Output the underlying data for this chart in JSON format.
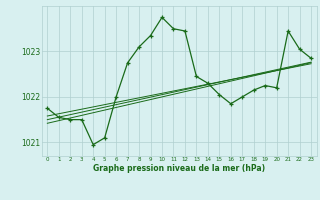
{
  "x": [
    0,
    1,
    2,
    3,
    4,
    5,
    6,
    7,
    8,
    9,
    10,
    11,
    12,
    13,
    14,
    15,
    16,
    17,
    18,
    19,
    20,
    21,
    22,
    23
  ],
  "y_main": [
    1021.75,
    1021.55,
    1021.5,
    1021.5,
    1020.95,
    1021.1,
    1022.0,
    1022.75,
    1023.1,
    1023.35,
    1023.75,
    1023.5,
    1023.45,
    1022.45,
    1022.3,
    1022.05,
    1021.85,
    1022.0,
    1022.15,
    1022.25,
    1022.2,
    1023.45,
    1023.05,
    1022.85
  ],
  "y_trend1": [
    1021.58,
    1021.63,
    1021.68,
    1021.73,
    1021.78,
    1021.83,
    1021.88,
    1021.93,
    1021.98,
    1022.03,
    1022.08,
    1022.13,
    1022.18,
    1022.23,
    1022.28,
    1022.33,
    1022.38,
    1022.43,
    1022.48,
    1022.53,
    1022.58,
    1022.63,
    1022.68,
    1022.73
  ],
  "y_trend2": [
    1021.5,
    1021.555,
    1021.61,
    1021.665,
    1021.72,
    1021.775,
    1021.83,
    1021.885,
    1021.94,
    1021.995,
    1022.05,
    1022.105,
    1022.16,
    1022.215,
    1022.27,
    1022.325,
    1022.38,
    1022.435,
    1022.49,
    1022.545,
    1022.6,
    1022.655,
    1022.71,
    1022.765
  ],
  "y_trend3": [
    1021.42,
    1021.478,
    1021.536,
    1021.594,
    1021.652,
    1021.71,
    1021.768,
    1021.826,
    1021.884,
    1021.942,
    1022.0,
    1022.058,
    1022.116,
    1022.174,
    1022.232,
    1022.29,
    1022.348,
    1022.406,
    1022.464,
    1022.522,
    1022.58,
    1022.638,
    1022.696,
    1022.754
  ],
  "line_color": "#1a6b1a",
  "bg_color": "#d8f0f0",
  "grid_color": "#b0d0d0",
  "text_color": "#1a6b1a",
  "ylim": [
    1020.7,
    1024.0
  ],
  "yticks": [
    1021,
    1022,
    1023
  ],
  "xlabel": "Graphe pression niveau de la mer (hPa)"
}
